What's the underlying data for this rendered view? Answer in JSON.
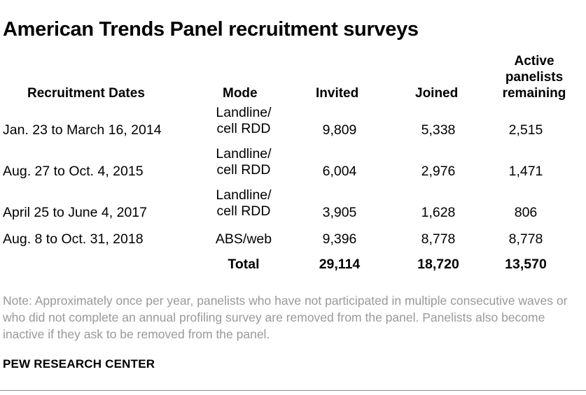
{
  "title": "American Trends Panel recruitment surveys",
  "columns": {
    "dates": "Recruitment Dates",
    "mode": "Mode",
    "invited": "Invited",
    "joined": "Joined",
    "active_line1": "Active",
    "active_line2": "panelists",
    "active_line3": "remaining"
  },
  "rows": [
    {
      "dates": "Jan. 23 to March 16, 2014",
      "mode_line1": "Landline/",
      "mode_line2": "cell RDD",
      "invited": "9,809",
      "joined": "5,338",
      "active": "2,515"
    },
    {
      "dates": "Aug. 27 to Oct. 4, 2015",
      "mode_line1": "Landline/",
      "mode_line2": "cell RDD",
      "invited": "6,004",
      "joined": "2,976",
      "active": "1,471"
    },
    {
      "dates": "April 25 to June 4, 2017",
      "mode_line1": "Landline/",
      "mode_line2": "cell RDD",
      "invited": "3,905",
      "joined": "1,628",
      "active": "806"
    },
    {
      "dates": "Aug. 8 to Oct. 31, 2018",
      "mode_line1": "ABS/web",
      "mode_line2": "",
      "invited": "9,396",
      "joined": "8,778",
      "active": "8,778"
    }
  ],
  "total": {
    "label": "Total",
    "invited": "29,114",
    "joined": "18,720",
    "active": "13,570"
  },
  "note": "Note: Approximately once per year, panelists who have not participated in multiple consecutive waves or who did not complete an annual profiling survey are removed from the panel. Panelists also become inactive if they ask to be removed from the panel.",
  "source": "PEW RESEARCH CENTER"
}
